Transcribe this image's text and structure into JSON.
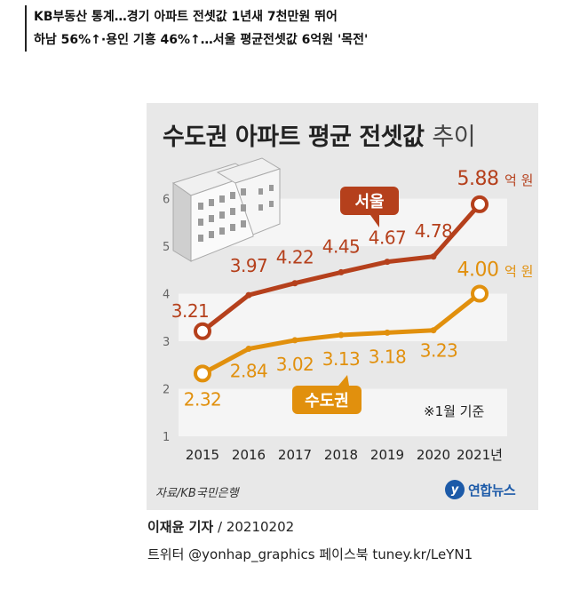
{
  "headline": {
    "line1": "KB부동산 통계…경기 아파트 전셋값 1년새 7천만원 뛰어",
    "line2": "하남 56%↑·용인 기흥 46%↑…서울 평균전셋값 6억원 '목전'"
  },
  "title": {
    "main": "수도권 아파트 평균 전셋값",
    "suffix": "추이"
  },
  "note": "※1월 기준",
  "source": "자료/KB국민은행",
  "logo": {
    "mark": "y",
    "text": "연합뉴스"
  },
  "credit": {
    "reporter": "이재윤 기자",
    "date": " / 20210202"
  },
  "sns": "트위터 @yonhap_graphics  페이스북 tuney.kr/LeYN1",
  "colors": {
    "seoul": "#b5401c",
    "capital": "#e1900d",
    "background": "#e8e8e8",
    "band": "#f5f5f5"
  },
  "icon": "apartment-building-icon",
  "chart_data": {
    "type": "line",
    "x": [
      "2015",
      "2016",
      "2017",
      "2018",
      "2019",
      "2020",
      "2021년"
    ],
    "yticks": [
      "1",
      "2",
      "3",
      "4",
      "5",
      "6"
    ],
    "ylim": [
      1,
      6.3
    ],
    "grid": "alternating horizontal bands",
    "series": [
      {
        "name": "서울",
        "values": [
          3.21,
          3.97,
          4.22,
          4.45,
          4.67,
          4.78,
          5.88
        ],
        "labels": [
          "3.21",
          "3.97",
          "4.22",
          "4.45",
          "4.67",
          "4.78",
          "5.88"
        ],
        "last_unit": "억 원",
        "color": "#b5401c"
      },
      {
        "name": "수도권",
        "values": [
          2.32,
          2.84,
          3.02,
          3.13,
          3.18,
          3.23,
          4.0
        ],
        "labels": [
          "2.32",
          "2.84",
          "3.02",
          "3.13",
          "3.18",
          "3.23",
          "4.00"
        ],
        "last_unit": "억 원",
        "color": "#e1900d"
      }
    ]
  }
}
